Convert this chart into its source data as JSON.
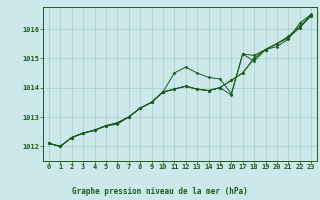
{
  "title": "Graphe pression niveau de la mer (hPa)",
  "background_color": "#cce8ea",
  "grid_color": "#aacccc",
  "line_color": "#1a5c1a",
  "xlim": [
    -0.5,
    23.5
  ],
  "ylim": [
    1011.5,
    1016.75
  ],
  "yticks": [
    1012,
    1013,
    1014,
    1015,
    1016
  ],
  "xticks": [
    0,
    1,
    2,
    3,
    4,
    5,
    6,
    7,
    8,
    9,
    10,
    11,
    12,
    13,
    14,
    15,
    16,
    17,
    18,
    19,
    20,
    21,
    22,
    23
  ],
  "series": [
    [
      1012.1,
      1012.0,
      1012.3,
      1012.45,
      1012.55,
      1012.7,
      1012.75,
      1013.0,
      1013.3,
      1013.5,
      1013.85,
      1014.5,
      1014.7,
      1014.5,
      1014.35,
      1014.3,
      1013.8,
      1015.15,
      1014.9,
      1015.3,
      1015.4,
      1015.65,
      1016.2,
      1016.5
    ],
    [
      1012.1,
      1012.0,
      1012.3,
      1012.45,
      1012.55,
      1012.7,
      1012.8,
      1013.0,
      1013.3,
      1013.5,
      1013.85,
      1013.95,
      1014.05,
      1013.95,
      1013.9,
      1014.0,
      1014.25,
      1014.5,
      1015.0,
      1015.3,
      1015.5,
      1015.7,
      1016.05,
      1016.45
    ],
    [
      1012.1,
      1012.0,
      1012.3,
      1012.45,
      1012.55,
      1012.7,
      1012.8,
      1013.0,
      1013.3,
      1013.5,
      1013.85,
      1013.95,
      1014.05,
      1013.95,
      1013.9,
      1014.0,
      1013.75,
      1015.15,
      1015.1,
      1015.3,
      1015.5,
      1015.75,
      1016.1,
      1016.48
    ],
    [
      1012.1,
      1012.0,
      1012.3,
      1012.45,
      1012.55,
      1012.7,
      1012.8,
      1013.0,
      1013.3,
      1013.5,
      1013.85,
      1013.95,
      1014.05,
      1013.95,
      1013.9,
      1014.0,
      1014.25,
      1014.5,
      1015.0,
      1015.3,
      1015.5,
      1015.7,
      1016.05,
      1016.45
    ]
  ]
}
